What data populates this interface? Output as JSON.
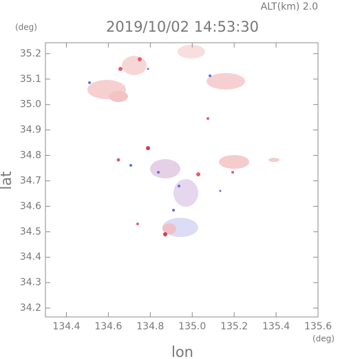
{
  "chart_data": {
    "type": "map",
    "title": "2019/10/02 14:53:30",
    "subtitle": "ALT(km) 2.0",
    "x_label": "lon",
    "y_label": "lat",
    "x_unit": "(deg)",
    "y_unit": "(deg)",
    "xlim": [
      134.3,
      135.6
    ],
    "ylim": [
      34.165,
      35.243
    ],
    "xticks": [
      134.4,
      134.6,
      134.8,
      {
        "value": 135,
        "label": "135.0"
      },
      135.2,
      135.4,
      135.6
    ],
    "yticks": [
      34.2,
      34.3,
      34.4,
      34.5,
      34.6,
      34.7,
      34.8,
      34.9,
      {
        "value": 35,
        "label": "35.0"
      },
      35.1,
      35.2
    ]
  }
}
